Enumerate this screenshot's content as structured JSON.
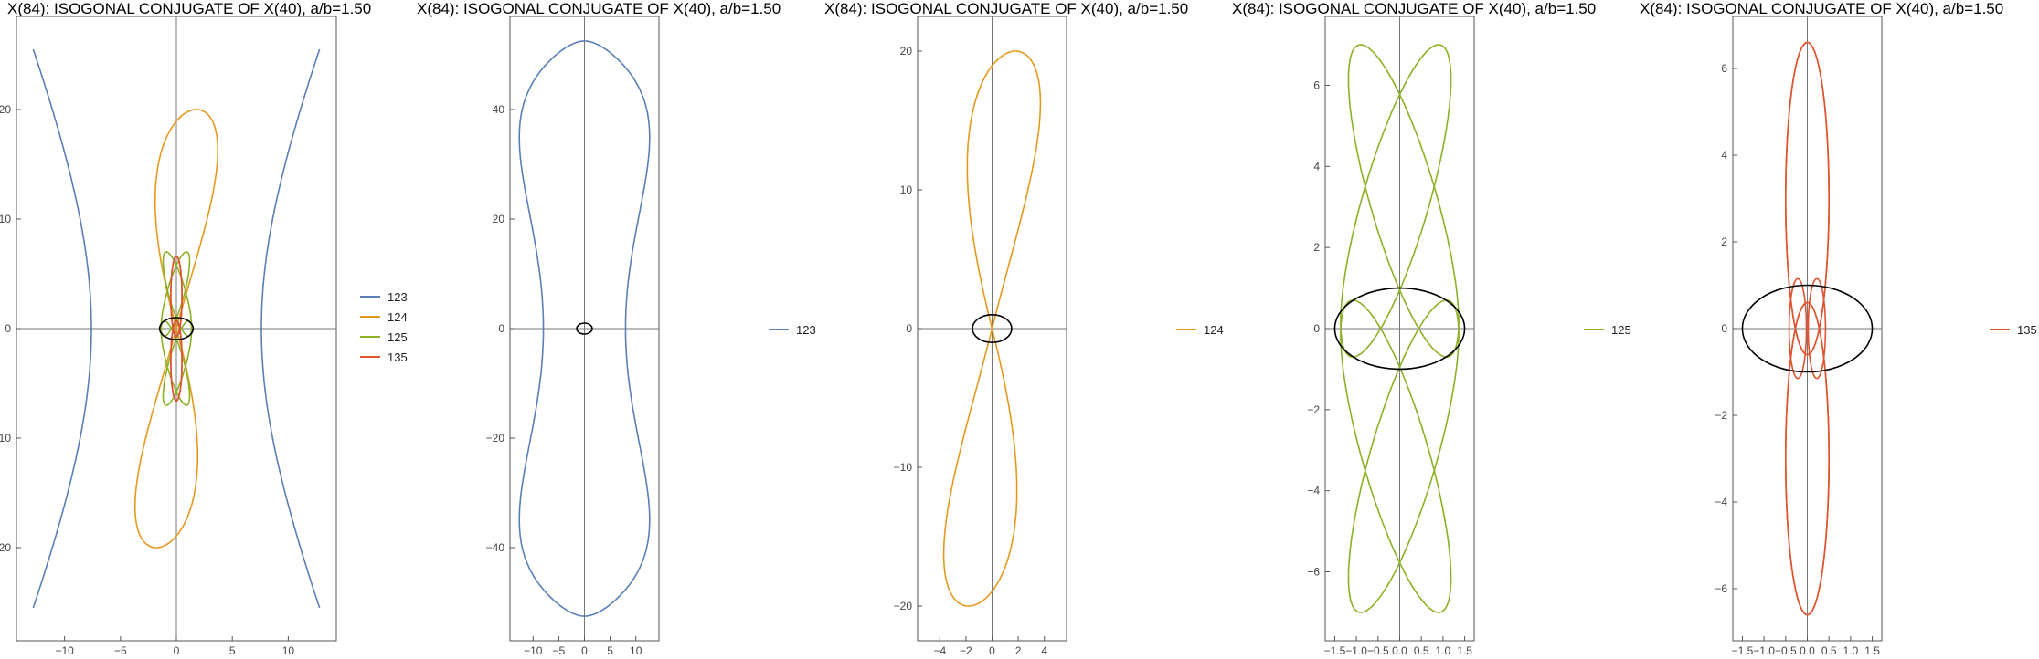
{
  "colors": {
    "123": "#5b7fb5",
    "124": "#e39a1e",
    "125": "#8db124",
    "135": "#e0532f",
    "circle": "#000000"
  },
  "chart_data": [
    {
      "type": "line",
      "title": "X(84): ISOGONAL CONJUGATE OF X(40), a/b=1.50",
      "xlim": [
        -14.3,
        14.3
      ],
      "ylim": [
        -28.5,
        28.5
      ],
      "xticks": [
        -10,
        -5,
        0,
        5,
        10
      ],
      "xtick_labels": [
        "−10",
        "−5",
        "0",
        "5",
        "10"
      ],
      "yticks": [
        -20,
        -10,
        0,
        10,
        20
      ],
      "ytick_labels": [
        "−20",
        "−10",
        "0",
        "10",
        "20"
      ],
      "series": [
        {
          "name": "123",
          "curve": "hyperbola",
          "vertex": 7.6,
          "end_x": 12.8,
          "end_y": 25.5
        },
        {
          "name": "124",
          "curve": "lobes",
          "peak_y": 20,
          "peak_x": 1.8,
          "width": 5.3
        },
        {
          "name": "125",
          "curve": "ellipses",
          "peak_y": 7.0,
          "peak_x": 0.9,
          "half_width": 0.8
        },
        {
          "name": "135",
          "curve": "ellipses",
          "peak_y": 6.6,
          "peak_x": 0.0,
          "half_width": 0.5
        }
      ],
      "ellipse": {
        "rx": 1.5,
        "ry": 1.0
      },
      "legend": [
        "123",
        "124",
        "125",
        "135"
      ]
    },
    {
      "type": "line",
      "title": "X(84): ISOGONAL CONJUGATE OF X(40), a/b=1.50",
      "xlim": [
        -14.5,
        14.5
      ],
      "ylim": [
        -57,
        57
      ],
      "xticks": [
        -10,
        -5,
        0,
        5,
        10
      ],
      "xtick_labels": [
        "−10",
        "−5",
        "0",
        "5",
        "10"
      ],
      "yticks": [
        -40,
        -20,
        0,
        20,
        40
      ],
      "ytick_labels": [
        "−40",
        "−20",
        "0",
        "20",
        "40"
      ],
      "series": [
        {
          "name": "123",
          "curve": "peanut",
          "peak_y": 52.5,
          "max_x": 13,
          "waist_x": 8.0
        }
      ],
      "ellipse": {
        "rx": 1.5,
        "ry": 1.0
      },
      "legend": [
        "123"
      ]
    },
    {
      "type": "line",
      "title": "X(84): ISOGONAL CONJUGATE OF X(40), a/b=1.50",
      "xlim": [
        -5.7,
        5.7
      ],
      "ylim": [
        -22.5,
        22.5
      ],
      "xticks": [
        -4,
        -2,
        0,
        2,
        4
      ],
      "xtick_labels": [
        "−4",
        "−2",
        "0",
        "2",
        "4"
      ],
      "yticks": [
        -20,
        -10,
        0,
        10,
        20
      ],
      "ytick_labels": [
        "−20",
        "−10",
        "0",
        "10",
        "20"
      ],
      "series": [
        {
          "name": "124",
          "curve": "lobes",
          "peak_y": 20,
          "peak_x": 1.8,
          "width": 5.3
        }
      ],
      "ellipse": {
        "rx": 1.5,
        "ry": 1.0
      },
      "legend": [
        "124"
      ]
    },
    {
      "type": "line",
      "title": "X(84): ISOGONAL CONJUGATE OF X(40), a/b=1.50",
      "xlim": [
        -1.72,
        1.72
      ],
      "ylim": [
        -7.7,
        7.7
      ],
      "xticks": [
        -1.5,
        -1.0,
        -0.5,
        0.0,
        0.5,
        1.0,
        1.5
      ],
      "xtick_labels": [
        "−1.5",
        "−1.0",
        "−0.5",
        "0.0",
        "0.5",
        "1.0",
        "1.5"
      ],
      "yticks": [
        -6,
        -4,
        -2,
        0,
        2,
        4,
        6
      ],
      "ytick_labels": [
        "−6",
        "−4",
        "−2",
        "0",
        "2",
        "4",
        "6"
      ],
      "series": [
        {
          "name": "125",
          "curve": "ellipses",
          "peak_y": 7.0,
          "peak_x": 0.9,
          "half_width": 0.8
        }
      ],
      "ellipse": {
        "rx": 1.5,
        "ry": 1.0
      },
      "legend": [
        "125"
      ]
    },
    {
      "type": "line",
      "title": "X(84): ISOGONAL CONJUGATE OF X(40), a/b=1.50",
      "xlim": [
        -1.72,
        1.72
      ],
      "ylim": [
        -7.2,
        7.2
      ],
      "xticks": [
        -1.5,
        -1.0,
        -0.5,
        0.0,
        0.5,
        1.0,
        1.5
      ],
      "xtick_labels": [
        "−1.5",
        "−1.0",
        "−0.5",
        "0.0",
        "0.5",
        "1.0",
        "1.5"
      ],
      "yticks": [
        -6,
        -4,
        -2,
        0,
        2,
        4,
        6
      ],
      "ytick_labels": [
        "−6",
        "−4",
        "−2",
        "0",
        "2",
        "4",
        "6"
      ],
      "series": [
        {
          "name": "135",
          "curve": "ellipses",
          "peak_y": 6.6,
          "peak_x": 0.0,
          "half_width": 0.5,
          "inner_loop": 1.15
        }
      ],
      "ellipse": {
        "rx": 1.5,
        "ry": 1.0
      },
      "legend": [
        "135"
      ]
    }
  ]
}
